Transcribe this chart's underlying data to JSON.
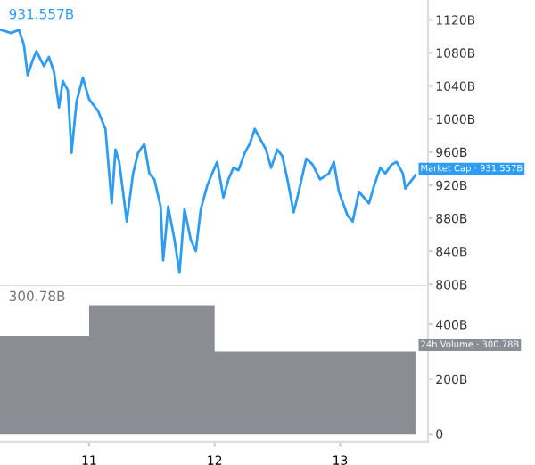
{
  "chart_data": [
    {
      "type": "line",
      "tick_labels": "y",
      "xlim": [
        10.29,
        13.7
      ],
      "ylim": [
        798,
        1144
      ],
      "yticks": [
        {
          "value": 800,
          "label": "800B"
        },
        {
          "value": 840,
          "label": "840B"
        },
        {
          "value": 880,
          "label": "880B"
        },
        {
          "value": 920,
          "label": "920B"
        },
        {
          "value": 960,
          "label": "960B"
        },
        {
          "value": 1000,
          "label": "1000B"
        },
        {
          "value": 1040,
          "label": "1040B"
        },
        {
          "value": 1080,
          "label": "1080B"
        },
        {
          "value": 1120,
          "label": "1120B"
        }
      ],
      "annotations": [
        "931.557B",
        {
          "text": "Market Cap · 931.557B",
          "x": 13.6,
          "y": 931.557
        }
      ],
      "series": [
        {
          "color": "#2f9cf4",
          "x": [
            10.29,
            10.38,
            10.44,
            10.48,
            10.51,
            10.55,
            10.58,
            10.64,
            10.68,
            10.72,
            10.76,
            10.79,
            10.83,
            10.86,
            10.9,
            10.95,
            11.0,
            11.07,
            11.13,
            11.18,
            11.21,
            11.24,
            11.3,
            11.35,
            11.39,
            11.44,
            11.48,
            11.52,
            11.57,
            11.59,
            11.63,
            11.68,
            11.72,
            11.76,
            11.81,
            11.85,
            11.89,
            11.94,
            11.98,
            12.02,
            12.07,
            12.11,
            12.15,
            12.19,
            12.24,
            12.28,
            12.32,
            12.37,
            12.41,
            12.45,
            12.5,
            12.54,
            12.58,
            12.63,
            12.67,
            12.73,
            12.78,
            12.84,
            12.91,
            12.95,
            12.99,
            13.06,
            13.1,
            13.15,
            13.19,
            13.23,
            13.27,
            13.32,
            13.36,
            13.41,
            13.45,
            13.5,
            13.52,
            13.6
          ],
          "values": [
            1108,
            1104,
            1108,
            1090,
            1053,
            1071,
            1082,
            1064,
            1075,
            1057,
            1014,
            1046,
            1035,
            959,
            1021,
            1050,
            1024,
            1010,
            988,
            898,
            963,
            948,
            876,
            934,
            959,
            970,
            934,
            927,
            894,
            829,
            894,
            854,
            814,
            891,
            854,
            840,
            891,
            919,
            934,
            948,
            905,
            927,
            941,
            938,
            959,
            970,
            988,
            974,
            963,
            941,
            963,
            955,
            927,
            887,
            912,
            952,
            945,
            927,
            934,
            948,
            912,
            883,
            876,
            912,
            905,
            898,
            919,
            941,
            934,
            945,
            948,
            934,
            916,
            932
          ]
        }
      ]
    },
    {
      "type": "area",
      "xlim": [
        10.29,
        13.7
      ],
      "ylim": [
        -28,
        540
      ],
      "xticks": [
        11,
        12,
        13
      ],
      "yticks": [
        0,
        {
          "value": 200,
          "label": "200B"
        },
        {
          "value": 400,
          "label": "400B"
        }
      ],
      "annotations": [
        "300.78B",
        {
          "text": "24h Volume · 300.78B",
          "x": 13.6,
          "y": 300.78
        }
      ],
      "series": [
        {
          "color": "#8a8d94",
          "x": [
            10.29,
            11,
            12,
            13.6
          ],
          "values": [
            358,
            470,
            301,
            301
          ]
        }
      ]
    }
  ]
}
